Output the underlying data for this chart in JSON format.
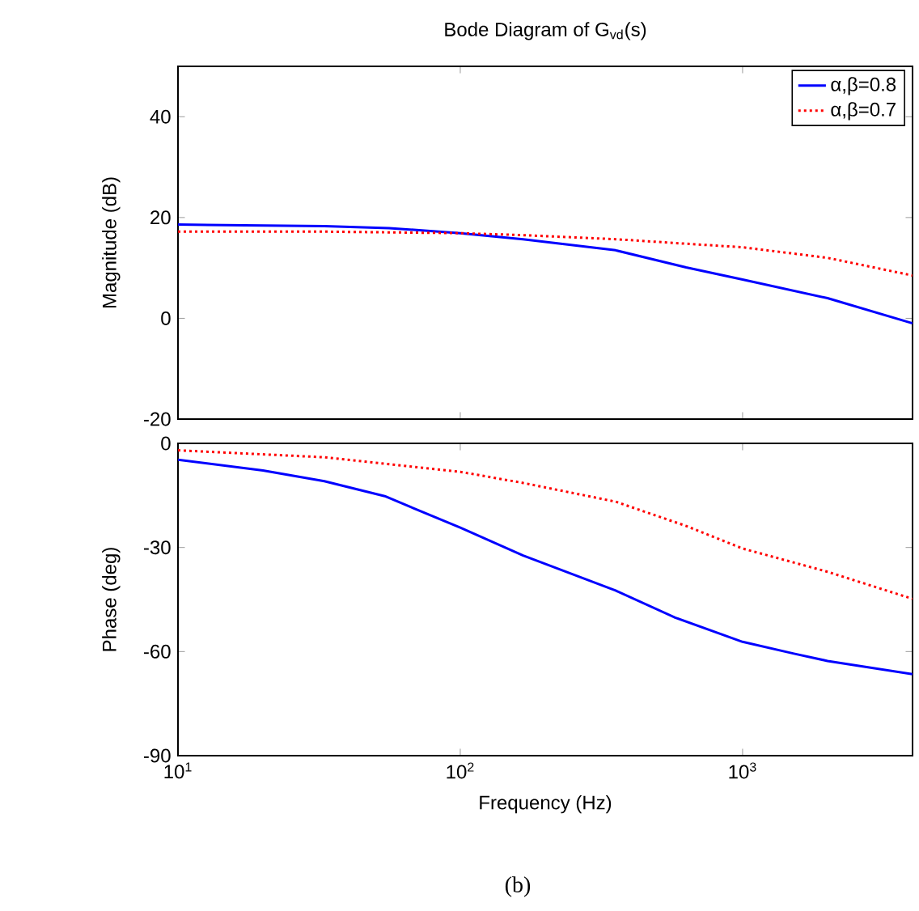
{
  "chart_data": [
    {
      "type": "line",
      "title": "Bode Diagram of G$_{vd}$(s)",
      "ylabel": "Magnitude (dB)",
      "log": "x",
      "xlim": [
        10,
        4000
      ],
      "ylim": [
        -20,
        50
      ],
      "xticks": [
        {
          "value": 10,
          "label": null
        },
        {
          "value": 100,
          "label": null
        },
        {
          "value": 1000,
          "label": null
        }
      ],
      "yticks": [
        -20,
        0,
        20,
        40
      ],
      "tick_labels": "y",
      "legend": "top right",
      "series": [
        {
          "name": "α,β=0.8",
          "color": "#0000ff",
          "line_style": "solid",
          "x": [
            10,
            33,
            56,
            100,
            167,
            355,
            631,
            1000,
            2000,
            4000
          ],
          "values": [
            18.6,
            18.3,
            17.9,
            16.9,
            15.7,
            13.5,
            10.1,
            7.7,
            4.0,
            -1.0
          ]
        },
        {
          "name": "α,β=0.7",
          "color": "#ff0000",
          "line_style": "dotted",
          "x": [
            10,
            33,
            100,
            167,
            355,
            631,
            1000,
            2000,
            4000
          ],
          "values": [
            17.2,
            17.2,
            16.9,
            16.5,
            15.7,
            14.8,
            14.1,
            12.0,
            8.5
          ]
        }
      ]
    },
    {
      "type": "line",
      "ylabel": "Phase (deg)",
      "xlabel": "Frequency (Hz)",
      "log": "x",
      "xlim": [
        10,
        4000
      ],
      "ylim": [
        -90,
        0
      ],
      "xticks": [
        {
          "value": 10,
          "label": "10$^{1}$"
        },
        {
          "value": 100,
          "label": "10$^{2}$"
        },
        {
          "value": 1000,
          "label": "10$^{3}$"
        }
      ],
      "yticks": [
        -90,
        -60,
        -30,
        0
      ],
      "annotations": [
        "(b)"
      ],
      "series": [
        {
          "color": "#0000ff",
          "line_style": "solid",
          "x": [
            10,
            20,
            33,
            54,
            100,
            167,
            355,
            577,
            1000,
            1520,
            2000,
            4000
          ],
          "values": [
            -4.7,
            -7.8,
            -10.9,
            -15.2,
            -24.3,
            -32.3,
            -42.4,
            -50.2,
            -57.2,
            -60.6,
            -62.7,
            -66.5
          ]
        },
        {
          "color": "#ff0000",
          "line_style": "dotted",
          "x": [
            10,
            33,
            100,
            167,
            355,
            631,
            1000,
            2000,
            4000
          ],
          "values": [
            -2.0,
            -4.0,
            -8.2,
            -11.4,
            -16.8,
            -23.8,
            -30.3,
            -37.0,
            -44.8
          ]
        }
      ]
    }
  ]
}
